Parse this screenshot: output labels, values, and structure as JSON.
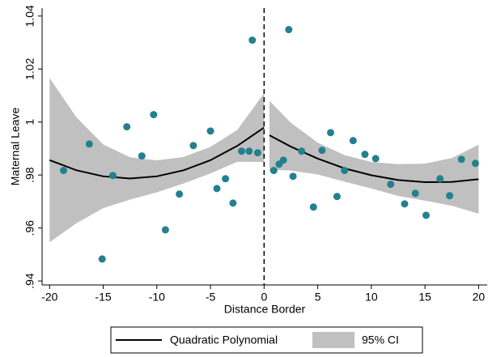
{
  "chart_data": {
    "type": "rdplot",
    "xlabel": "Distance Border",
    "ylabel": "Maternal Leave",
    "xlim": [
      -20.7,
      20.8
    ],
    "ylim": [
      0.9385,
      1.043
    ],
    "xticks": [
      -20,
      -15,
      -10,
      -5,
      0,
      5,
      10,
      15,
      20
    ],
    "yticks": [
      {
        "value": 0.94,
        "label": ".94"
      },
      {
        "value": 0.96,
        "label": ".96"
      },
      {
        "value": 0.98,
        "label": ".98"
      },
      1,
      1.02,
      1.04
    ],
    "cutoff": 0,
    "scatter": {
      "color": "#23808f",
      "x": [
        -18.7,
        -16.3,
        -15.1,
        -14.1,
        -12.8,
        -11.4,
        -10.3,
        -9.2,
        -7.9,
        -6.6,
        -5.0,
        -4.4,
        -3.6,
        -2.9,
        -2.1,
        -1.4,
        -1.1,
        -0.6,
        0.9,
        1.4,
        1.8,
        2.3,
        2.7,
        3.5,
        4.6,
        5.4,
        6.2,
        6.8,
        7.5,
        8.3,
        9.4,
        10.4,
        11.8,
        13.1,
        14.1,
        15.1,
        16.4,
        17.3,
        18.4,
        19.7
      ],
      "values": [
        0.9817,
        0.9917,
        0.9483,
        0.9798,
        0.9982,
        0.9872,
        1.0028,
        0.9593,
        0.9728,
        0.9911,
        0.9966,
        0.9749,
        0.9786,
        0.9694,
        0.989,
        0.989,
        1.0309,
        0.9884,
        0.9817,
        0.9841,
        0.9856,
        1.0349,
        0.9795,
        0.989,
        0.9679,
        0.9893,
        0.996,
        0.9719,
        0.9817,
        0.993,
        0.9878,
        0.9862,
        0.9765,
        0.9691,
        0.9731,
        0.9648,
        0.9786,
        0.9722,
        0.9859,
        0.9844
      ]
    },
    "fit": {
      "name": "Quadratic Polynomial",
      "color": "#000000",
      "segments": [
        {
          "x": [
            -20,
            -17.5,
            -15,
            -12.5,
            -10,
            -7.5,
            -5,
            -2.5,
            0
          ],
          "values": [
            0.9856,
            0.9818,
            0.9795,
            0.9787,
            0.9795,
            0.9818,
            0.9856,
            0.991,
            0.9979
          ]
        },
        {
          "x": [
            0.5,
            2.5,
            5,
            7.5,
            10,
            12.5,
            15,
            17.5,
            20
          ],
          "values": [
            0.995,
            0.9907,
            0.9862,
            0.9825,
            0.9799,
            0.9781,
            0.9773,
            0.9774,
            0.9784
          ]
        }
      ]
    },
    "ci": {
      "name": "95% CI",
      "color": "#c0c0c0",
      "segments": [
        {
          "x": [
            -20,
            -17.5,
            -15,
            -12.5,
            -10,
            -7.5,
            -5,
            -2.5,
            0
          ],
          "upper": [
            1.0166,
            1.0018,
            0.9915,
            0.9867,
            0.9855,
            0.9868,
            0.9906,
            0.997,
            1.0109
          ],
          "lower": [
            0.9546,
            0.9618,
            0.9675,
            0.9707,
            0.9735,
            0.9768,
            0.9806,
            0.985,
            0.9849
          ]
        },
        {
          "x": [
            0.5,
            2.5,
            5,
            7.5,
            10,
            12.5,
            15,
            17.5,
            20
          ],
          "upper": [
            1.008,
            0.9997,
            0.9922,
            0.9875,
            0.9849,
            0.9841,
            0.9843,
            0.9864,
            0.9914
          ],
          "lower": [
            0.982,
            0.9817,
            0.9802,
            0.9775,
            0.9749,
            0.9721,
            0.9703,
            0.9684,
            0.9654
          ]
        }
      ]
    }
  }
}
